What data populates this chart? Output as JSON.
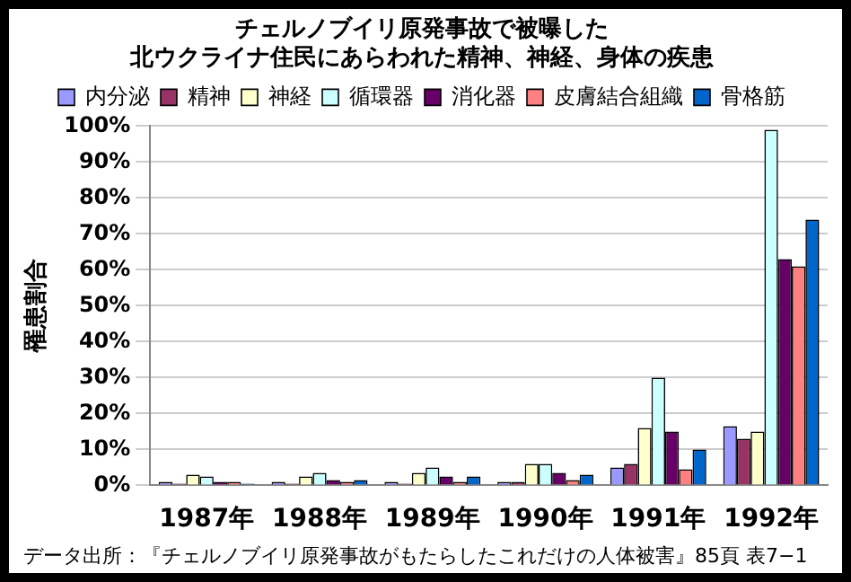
{
  "chart_data": {
    "type": "bar",
    "title": [
      "チェルノブイリ原発事故で被曝した",
      "北ウクライナ住民にあらわれた精神、神経、身体の疾患"
    ],
    "ylabel": "罹患割合",
    "categories": [
      "1987年",
      "1988年",
      "1989年",
      "1990年",
      "1991年",
      "1992年"
    ],
    "series": [
      {
        "name": "内分泌",
        "color": "#9999ff",
        "values": [
          1,
          1,
          1,
          1,
          5,
          16.5
        ]
      },
      {
        "name": "精神",
        "color": "#993366",
        "values": [
          0.5,
          0.5,
          0.5,
          1,
          6,
          13
        ]
      },
      {
        "name": "神経",
        "color": "#ffffcc",
        "values": [
          3,
          2.5,
          3.5,
          6,
          16,
          15
        ]
      },
      {
        "name": "循環器",
        "color": "#ccffff",
        "values": [
          2.5,
          3.5,
          5,
          6,
          30,
          99
        ]
      },
      {
        "name": "消化器",
        "color": "#660066",
        "values": [
          1,
          1.5,
          2.5,
          3.5,
          15,
          63
        ]
      },
      {
        "name": "皮膚結合組織",
        "color": "#ff8080",
        "values": [
          1,
          1,
          1,
          1.5,
          4.5,
          61
        ]
      },
      {
        "name": "骨格筋",
        "color": "#0066cc",
        "values": [
          0.5,
          1.5,
          2.5,
          3,
          10,
          74
        ]
      }
    ],
    "ylim": [
      0,
      100
    ],
    "yticks": [
      {
        "value": 0,
        "label": "0%"
      },
      {
        "value": 10,
        "label": "10%"
      },
      {
        "value": 20,
        "label": "20%"
      },
      {
        "value": 30,
        "label": "30%"
      },
      {
        "value": 40,
        "label": "40%"
      },
      {
        "value": 50,
        "label": "50%"
      },
      {
        "value": 60,
        "label": "60%"
      },
      {
        "value": 70,
        "label": "70%"
      },
      {
        "value": 80,
        "label": "80%"
      },
      {
        "value": 90,
        "label": "90%"
      },
      {
        "value": 100,
        "label": "100%"
      }
    ],
    "grid": "y",
    "legend": "top",
    "annotations": [
      "データ出所：『チェルノブイリ原発事故がもたらしたこれだけの人体被害』85頁 表7−1"
    ]
  }
}
